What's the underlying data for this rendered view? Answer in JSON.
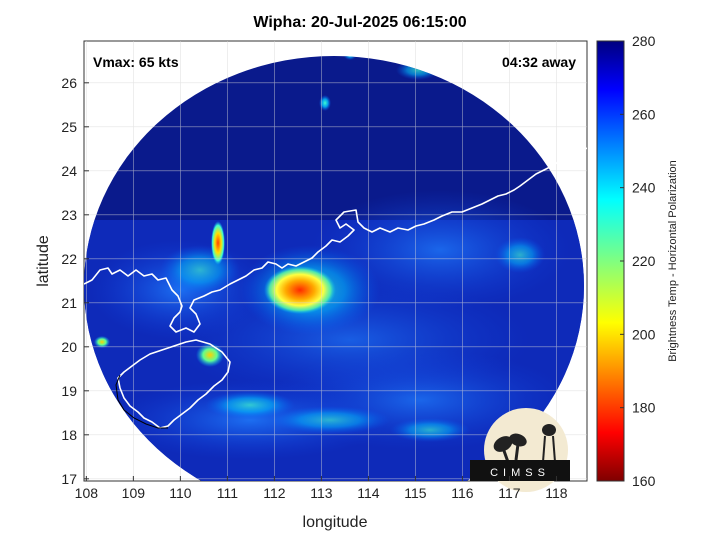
{
  "title": "Wipha: 20-Jul-2025 06:15:00",
  "vmax_text": "Vmax: 65 kts",
  "away_text": "04:32 away",
  "axes": {
    "xlabel": "longitude",
    "ylabel": "latitude",
    "xticks": [
      "108",
      "109",
      "110",
      "111",
      "112",
      "113",
      "114",
      "115",
      "116",
      "117",
      "118"
    ],
    "yticks": [
      "17",
      "18",
      "19",
      "20",
      "21",
      "22",
      "23",
      "24",
      "25",
      "26"
    ],
    "xlim": [
      107.95,
      118.65
    ],
    "ylim": [
      16.95,
      26.95
    ]
  },
  "colorbar": {
    "label": "Brightness Temp - Horizontal Polarization",
    "ticks": [
      "160",
      "180",
      "200",
      "220",
      "240",
      "260",
      "280"
    ],
    "range": [
      160,
      280
    ]
  },
  "logo": {
    "text": "CIMSS"
  },
  "colors": {
    "background_cold": "#0a1a8c",
    "core_warm": "#ff2a00"
  }
}
